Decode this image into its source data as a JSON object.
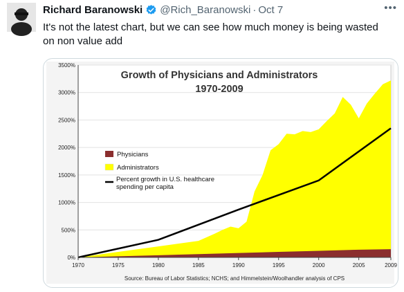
{
  "tweet": {
    "author_name": "Richard Baranowski",
    "handle": "@Rich_Baranowski",
    "separator": "·",
    "date": "Oct 7",
    "more_icon": "more-horizontal-icon",
    "verified_icon": "verified-badge-icon",
    "text": "It's not the latest chart, but we can see how much money is being wasted on non value add"
  },
  "colors": {
    "physicians": "#8b2e2e",
    "administrators": "#ffff00",
    "spending_line": "#000000",
    "verified": "#1d9bf0"
  },
  "chart_data": {
    "type": "area",
    "title": "Growth of Physicians and Administrators",
    "subtitle": "1970-2009",
    "source": "Source: Bureau of Labor Statistics; NCHS; and Himmelstein/Woolhandler analysis of CPS",
    "ylim": [
      0,
      3500
    ],
    "xlim": [
      1970,
      2009
    ],
    "y_ticks": [
      "0%",
      "500%",
      "1000%",
      "1500%",
      "2000%",
      "2500%",
      "3000%",
      "3500%"
    ],
    "y_tick_values": [
      0,
      500,
      1000,
      1500,
      2000,
      2500,
      3000,
      3500
    ],
    "x_ticks": [
      "1970",
      "1975",
      "1980",
      "1985",
      "1990",
      "1995",
      "2000",
      "2005",
      "2009"
    ],
    "x_tick_values": [
      1970,
      1975,
      1980,
      1985,
      1990,
      1995,
      2000,
      2005,
      2009
    ],
    "grid": true,
    "legend_position": "left",
    "series": [
      {
        "name": "Physicians",
        "kind": "area",
        "x": [
          1970,
          1975,
          1980,
          1985,
          1990,
          1995,
          2000,
          2005,
          2009
        ],
        "y": [
          0,
          20,
          40,
          60,
          80,
          100,
          120,
          140,
          150
        ]
      },
      {
        "name": "Administrators",
        "kind": "area",
        "x": [
          1970,
          1975,
          1980,
          1985,
          1987,
          1988,
          1989,
          1990,
          1991,
          1992,
          1993,
          1994,
          1995,
          1996,
          1997,
          1998,
          1999,
          2000,
          2001,
          2002,
          2003,
          2004,
          2005,
          2006,
          2007,
          2008,
          2009
        ],
        "y": [
          0,
          100,
          200,
          300,
          430,
          500,
          560,
          530,
          650,
          1200,
          1500,
          1950,
          2060,
          2250,
          2240,
          2300,
          2280,
          2330,
          2480,
          2620,
          2920,
          2780,
          2530,
          2800,
          2980,
          3150,
          3220
        ]
      },
      {
        "name": "Percent growth in U.S. healthcare spending per capita",
        "kind": "line",
        "x": [
          1970,
          1980,
          1990,
          2000,
          2009
        ],
        "y": [
          0,
          320,
          870,
          1400,
          2350
        ]
      }
    ]
  }
}
